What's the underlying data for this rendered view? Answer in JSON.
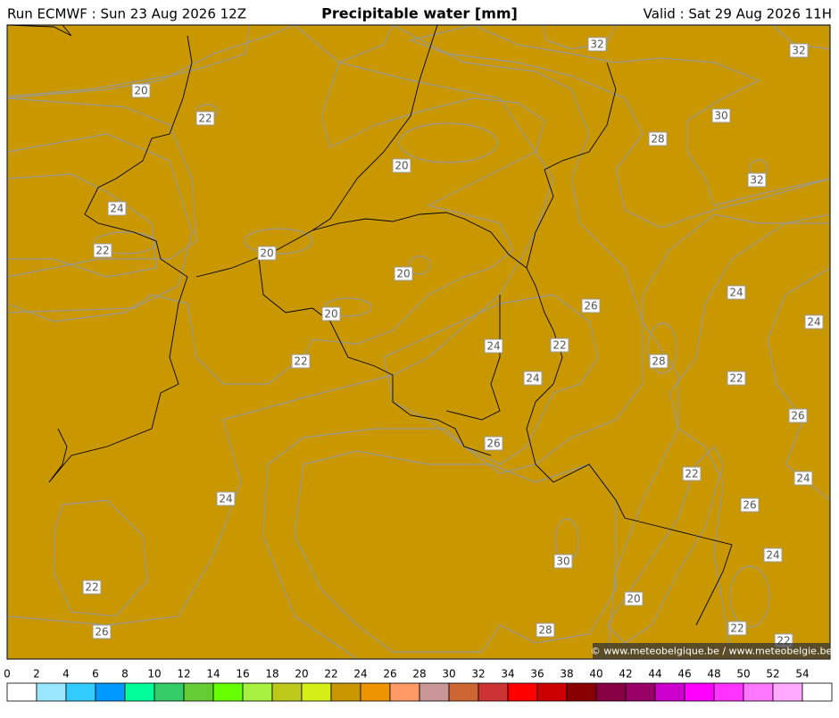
{
  "header": {
    "run": "Run ECMWF : Sun 23 Aug 2026 12Z",
    "title": "Precipitable water [mm]",
    "valid": "Valid : Sat 29 Aug 2026 11H"
  },
  "contour_labels": [
    "20",
    "22",
    "20",
    "24",
    "22",
    "20",
    "20",
    "20",
    "22",
    "24",
    "22",
    "24",
    "26",
    "28",
    "24",
    "24",
    "22",
    "26",
    "26",
    "22",
    "24",
    "24",
    "26",
    "30",
    "24",
    "22",
    "20",
    "26",
    "28",
    "22",
    "22",
    "32",
    "32",
    "30",
    "28",
    "32"
  ],
  "legend": {
    "ticks": [
      "0",
      "2",
      "4",
      "6",
      "8",
      "10",
      "12",
      "14",
      "16",
      "18",
      "20",
      "22",
      "24",
      "26",
      "28",
      "30",
      "32",
      "34",
      "36",
      "38",
      "40",
      "42",
      "44",
      "46",
      "48",
      "50",
      "52",
      "54"
    ],
    "colors": [
      "#ffffff",
      "#99e6ff",
      "#33ccff",
      "#0099ff",
      "#00ff99",
      "#33cc66",
      "#66cc33",
      "#66ff00",
      "#a8f040",
      "#bcc81a",
      "#d4ef16",
      "#c99700",
      "#ee9400",
      "#ff9966",
      "#c89696",
      "#cc6633",
      "#cc3333",
      "#ff0000",
      "#cc0000",
      "#880000",
      "#880044",
      "#990066",
      "#cc00cc",
      "#ff00ff",
      "#ff33ff",
      "#ff77ff",
      "#ffaaff",
      "#ffffff"
    ]
  },
  "copyright": "© www.meteobelgique.be / www.meteobelgie.be"
}
